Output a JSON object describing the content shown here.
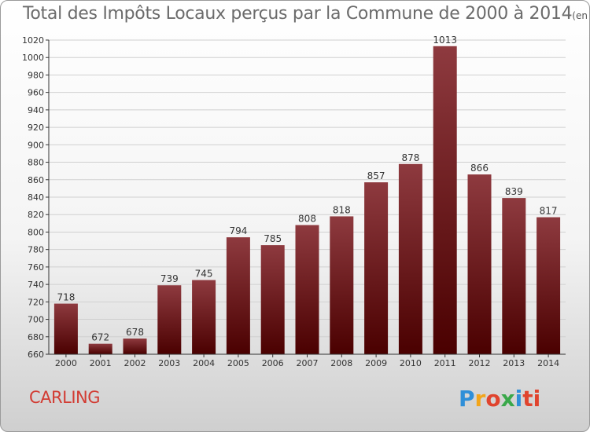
{
  "header": {
    "title": "Total des Impôts Locaux perçus par la Commune de 2000 à 2014",
    "subtitle": "(en milliers d'€)"
  },
  "footer": {
    "commune": "CARLING",
    "brand_letters": [
      "P",
      "r",
      "o",
      "x",
      "i",
      "ti"
    ]
  },
  "colors": {
    "bar_top": "#8e3a3f",
    "bar_bottom": "#4a0000",
    "grid": "#d0d0d0",
    "axis": "#333333",
    "label": "#333333"
  },
  "chart_data": {
    "type": "bar",
    "title": "Total des Impôts Locaux perçus par la Commune de 2000 à 2014",
    "subtitle": "(en milliers d'€)",
    "xlabel": "",
    "ylabel": "",
    "categories": [
      "2000",
      "2001",
      "2002",
      "2003",
      "2004",
      "2005",
      "2006",
      "2007",
      "2008",
      "2009",
      "2010",
      "2011",
      "2012",
      "2013",
      "2014"
    ],
    "values": [
      718,
      672,
      678,
      739,
      745,
      794,
      785,
      808,
      818,
      857,
      878,
      1013,
      866,
      839,
      817
    ],
    "ylim": [
      660,
      1020
    ],
    "ytick_step": 20,
    "grid": true,
    "legend": "none"
  }
}
